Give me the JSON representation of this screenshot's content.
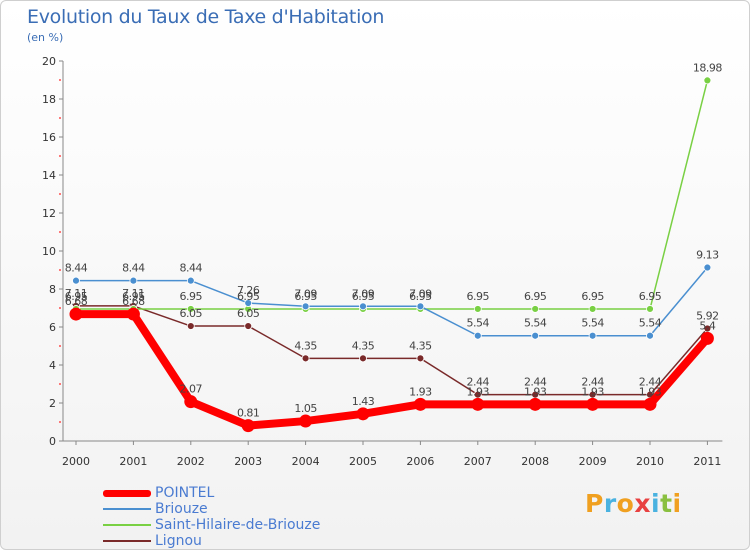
{
  "chart_data": {
    "type": "line",
    "title": "Evolution du Taux de Taxe d'Habitation",
    "subtitle": "(en %)",
    "x": [
      "2000",
      "2001",
      "2002",
      "2003",
      "2004",
      "2005",
      "2006",
      "2007",
      "2008",
      "2009",
      "2010",
      "2011"
    ],
    "ylim": [
      0,
      20
    ],
    "yticks": [
      0,
      2,
      4,
      6,
      8,
      10,
      12,
      14,
      16,
      18,
      20
    ],
    "grid": false,
    "legend_position": "bottom-left",
    "series": [
      {
        "name": "Lignou",
        "color": "#7a2a2a",
        "values": [
          7.11,
          7.11,
          6.05,
          6.05,
          4.35,
          4.35,
          4.35,
          2.44,
          2.44,
          2.44,
          2.44,
          5.92
        ],
        "labels": [
          "7.11",
          "7.11",
          "6.05",
          "6.05",
          "4.35",
          "4.35",
          "4.35",
          "2.44",
          "2.44",
          "2.44",
          "2.44",
          "5.92"
        ]
      },
      {
        "name": "Saint-Hilaire-de-Briouze",
        "color": "#79d043",
        "values": [
          6.95,
          6.95,
          6.95,
          6.95,
          6.95,
          6.95,
          6.95,
          6.95,
          6.95,
          6.95,
          6.95,
          18.98
        ],
        "labels": [
          "6.95",
          "6.95",
          "6.95",
          "6.95",
          "6.95",
          "6.95",
          "6.95",
          "6.95",
          "6.95",
          "6.95",
          "6.95",
          "18.98"
        ]
      },
      {
        "name": "Briouze",
        "color": "#4a8fd0",
        "values": [
          8.44,
          8.44,
          8.44,
          7.26,
          7.09,
          7.09,
          7.09,
          5.54,
          5.54,
          5.54,
          5.54,
          9.13
        ],
        "labels": [
          "8.44",
          "8.44",
          "8.44",
          "7.26",
          "7.09",
          "7.09",
          "7.09",
          "5.54",
          "5.54",
          "5.54",
          "5.54",
          "9.13"
        ]
      },
      {
        "name": "POINTEL",
        "color": "#ff0000",
        "values": [
          6.68,
          6.68,
          2.07,
          0.81,
          1.05,
          1.43,
          1.93,
          1.93,
          1.93,
          1.93,
          1.93,
          5.4
        ],
        "labels": [
          "6.68",
          "6.68",
          "2.07",
          "0.81",
          "1.05",
          "1.43",
          "1.93",
          "1.93",
          "1.93",
          "1.93",
          "1.93",
          "5.4"
        ]
      }
    ]
  },
  "legend": [
    {
      "name": "POINTEL",
      "color": "#ff0000",
      "width": 7
    },
    {
      "name": "Briouze",
      "color": "#4a8fd0",
      "width": 2
    },
    {
      "name": "Saint-Hilaire-de-Briouze",
      "color": "#79d043",
      "width": 2
    },
    {
      "name": "Lignou",
      "color": "#7a2a2a",
      "width": 2
    }
  ],
  "logo": {
    "letters": [
      "P",
      "r",
      "o",
      "x",
      "i",
      "t",
      "i"
    ],
    "colors": [
      "#f0a020",
      "#4ab2e0",
      "#f0a020",
      "#e84040",
      "#4ab2e0",
      "#8ac040",
      "#f0a020"
    ]
  }
}
